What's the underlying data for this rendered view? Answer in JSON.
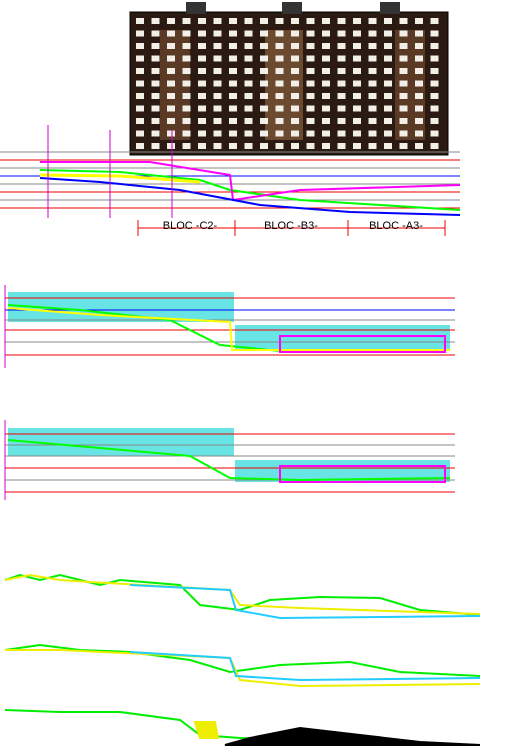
{
  "blocks": {
    "labels": [
      "BLOC -C2-",
      "BLOC -B3-",
      "BLOC -A3-"
    ]
  }
}
